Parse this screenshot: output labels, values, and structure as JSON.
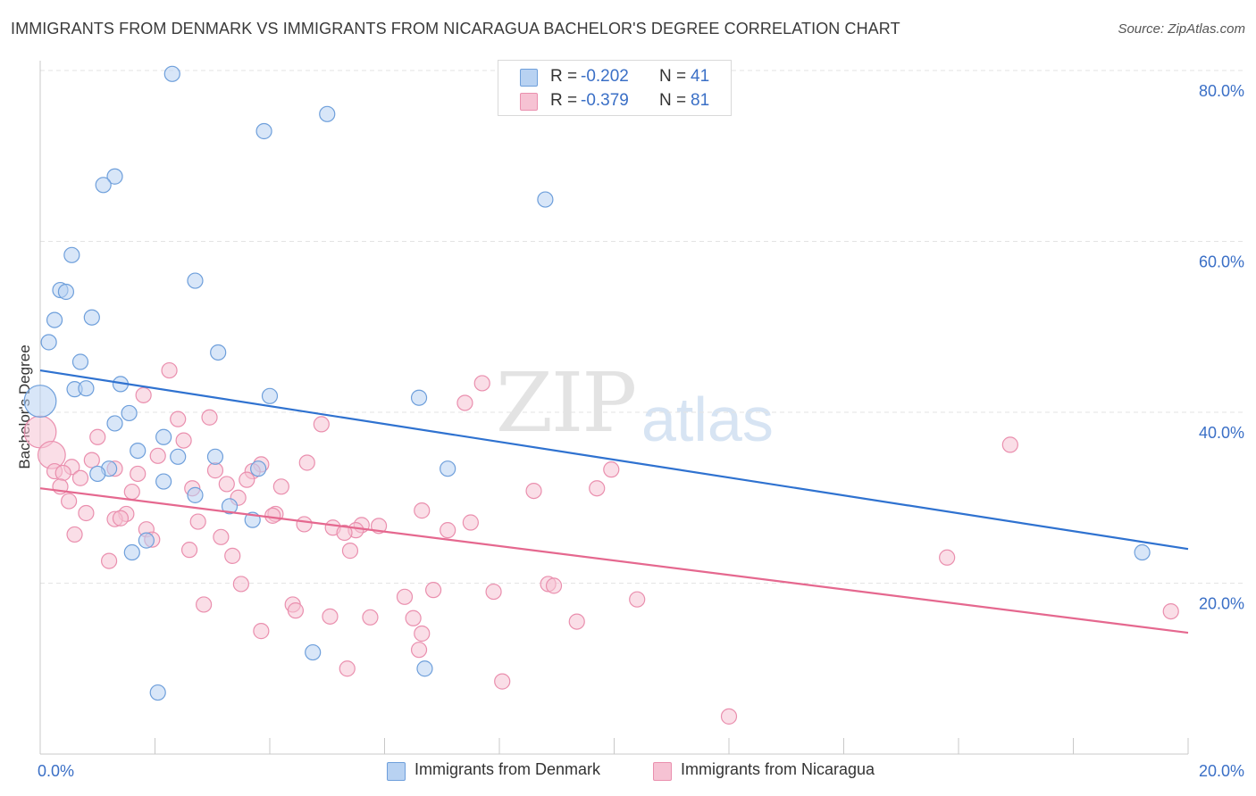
{
  "header": {
    "title": "IMMIGRANTS FROM DENMARK VS IMMIGRANTS FROM NICARAGUA BACHELOR'S DEGREE CORRELATION CHART",
    "source": "Source: ZipAtlas.com"
  },
  "watermark": {
    "left": "ZIP",
    "right": "atlas"
  },
  "legend": {
    "rows": [
      {
        "r_label": "R =",
        "r_value": "-0.202",
        "n_label": "N =",
        "n_value": "41"
      },
      {
        "r_label": "R =",
        "r_value": "-0.379",
        "n_label": "N =",
        "n_value": "81"
      }
    ]
  },
  "bottom_legend": {
    "items": [
      {
        "label": "Immigrants from Denmark"
      },
      {
        "label": "Immigrants from Nicaragua"
      }
    ]
  },
  "colors": {
    "denmark_fill": "#b8d2f2",
    "denmark_stroke": "#6e9fdb",
    "denmark_line": "#2f72d0",
    "nicaragua_fill": "#f6c2d3",
    "nicaragua_stroke": "#ea8fae",
    "nicaragua_line": "#e5688f",
    "axis_text": "#3a6fc6",
    "grid": "#e3e3e3"
  },
  "chart_data": {
    "type": "scatter",
    "title": "IMMIGRANTS FROM DENMARK VS IMMIGRANTS FROM NICARAGUA BACHELOR'S DEGREE CORRELATION CHART",
    "xlabel": "",
    "ylabel": "Bachelor's Degree",
    "xlim": [
      0,
      20
    ],
    "ylim": [
      0,
      82
    ],
    "x_tick_labels": [
      {
        "value": 0,
        "label": "0.0%"
      },
      {
        "value": 20,
        "label": "20.0%"
      }
    ],
    "y_tick_labels": [
      {
        "value": 20,
        "label": "20.0%"
      },
      {
        "value": 40,
        "label": "40.0%"
      },
      {
        "value": 60,
        "label": "60.0%"
      },
      {
        "value": 80,
        "label": "80.0%"
      }
    ],
    "grid": true,
    "legend_position": "top-center",
    "series": [
      {
        "name": "Immigrants from Denmark",
        "color": "#6e9fdb",
        "trend": {
          "x": [
            0,
            20
          ],
          "y": [
            44.9,
            24.0
          ]
        },
        "points": [
          [
            2.3,
            79.6,
            1
          ],
          [
            5.0,
            74.9,
            1
          ],
          [
            3.9,
            72.9,
            1
          ],
          [
            1.3,
            67.6,
            1
          ],
          [
            1.1,
            66.6,
            1
          ],
          [
            8.8,
            64.9,
            1
          ],
          [
            0.55,
            58.4,
            1
          ],
          [
            2.7,
            55.4,
            1
          ],
          [
            0.35,
            54.3,
            1
          ],
          [
            0.45,
            54.1,
            1
          ],
          [
            0.25,
            50.8,
            1
          ],
          [
            0.9,
            51.1,
            1
          ],
          [
            0.15,
            48.2,
            1
          ],
          [
            3.1,
            47.0,
            1
          ],
          [
            0.7,
            45.9,
            1
          ],
          [
            0.6,
            42.7,
            1
          ],
          [
            0.8,
            42.8,
            1
          ],
          [
            1.4,
            43.3,
            1
          ],
          [
            0.0,
            41.3,
            1.4
          ],
          [
            4.0,
            41.9,
            1
          ],
          [
            6.6,
            41.7,
            1
          ],
          [
            1.55,
            39.9,
            1
          ],
          [
            1.3,
            38.7,
            1
          ],
          [
            2.15,
            37.1,
            1
          ],
          [
            1.7,
            35.5,
            1
          ],
          [
            2.4,
            34.8,
            1
          ],
          [
            3.05,
            34.8,
            1
          ],
          [
            1.2,
            33.4,
            1
          ],
          [
            1.0,
            32.8,
            1
          ],
          [
            3.8,
            33.4,
            1
          ],
          [
            7.1,
            33.4,
            1
          ],
          [
            2.15,
            31.9,
            1
          ],
          [
            2.7,
            30.3,
            1
          ],
          [
            3.3,
            29.0,
            1
          ],
          [
            3.7,
            27.4,
            1
          ],
          [
            1.85,
            25.0,
            1
          ],
          [
            1.6,
            23.6,
            1
          ],
          [
            19.2,
            23.6,
            1
          ],
          [
            4.75,
            11.9,
            1
          ],
          [
            6.7,
            10.0,
            1
          ],
          [
            2.05,
            7.2,
            1
          ]
        ]
      },
      {
        "name": "Immigrants from Nicaragua",
        "color": "#ea8fae",
        "trend": {
          "x": [
            0,
            20
          ],
          "y": [
            31.1,
            14.2
          ]
        },
        "points": [
          [
            0.0,
            37.7,
            1.4
          ],
          [
            2.25,
            44.9,
            1
          ],
          [
            7.7,
            43.4,
            1
          ],
          [
            1.8,
            42.0,
            1
          ],
          [
            7.4,
            41.1,
            1
          ],
          [
            2.95,
            39.4,
            1
          ],
          [
            2.4,
            39.2,
            1
          ],
          [
            4.9,
            38.6,
            1
          ],
          [
            1.0,
            37.1,
            1
          ],
          [
            2.5,
            36.7,
            1
          ],
          [
            16.9,
            36.2,
            1
          ],
          [
            0.2,
            35.0,
            1.2
          ],
          [
            2.05,
            34.9,
            1
          ],
          [
            0.9,
            34.4,
            1
          ],
          [
            4.65,
            34.1,
            1
          ],
          [
            0.55,
            33.6,
            1
          ],
          [
            3.85,
            33.9,
            1
          ],
          [
            0.25,
            33.1,
            1
          ],
          [
            0.4,
            32.9,
            1
          ],
          [
            1.3,
            33.4,
            1
          ],
          [
            3.05,
            33.2,
            1
          ],
          [
            1.7,
            32.8,
            1
          ],
          [
            3.7,
            33.1,
            1
          ],
          [
            0.7,
            32.3,
            1
          ],
          [
            3.6,
            32.1,
            1
          ],
          [
            9.95,
            33.3,
            1
          ],
          [
            3.25,
            31.6,
            1
          ],
          [
            4.2,
            31.3,
            1
          ],
          [
            0.35,
            31.3,
            1
          ],
          [
            2.65,
            31.1,
            1
          ],
          [
            9.7,
            31.1,
            1
          ],
          [
            1.6,
            30.7,
            1
          ],
          [
            8.6,
            30.8,
            1
          ],
          [
            3.45,
            30.0,
            1
          ],
          [
            6.65,
            28.5,
            1
          ],
          [
            0.8,
            28.2,
            1
          ],
          [
            1.5,
            28.1,
            1
          ],
          [
            4.1,
            28.1,
            1
          ],
          [
            1.3,
            27.5,
            1
          ],
          [
            1.4,
            27.6,
            1
          ],
          [
            2.75,
            27.2,
            1
          ],
          [
            4.6,
            26.9,
            1
          ],
          [
            7.5,
            27.1,
            1
          ],
          [
            5.6,
            26.8,
            1
          ],
          [
            5.9,
            26.7,
            1
          ],
          [
            5.1,
            26.5,
            1
          ],
          [
            5.5,
            26.2,
            1
          ],
          [
            7.1,
            26.2,
            1
          ],
          [
            5.3,
            25.9,
            1
          ],
          [
            1.85,
            26.3,
            1
          ],
          [
            0.6,
            25.7,
            1
          ],
          [
            3.15,
            25.4,
            1
          ],
          [
            1.95,
            25.1,
            1
          ],
          [
            2.6,
            23.9,
            1
          ],
          [
            5.4,
            23.8,
            1
          ],
          [
            3.35,
            23.2,
            1
          ],
          [
            1.2,
            22.6,
            1
          ],
          [
            15.8,
            23.0,
            1
          ],
          [
            3.5,
            19.9,
            1
          ],
          [
            8.85,
            19.9,
            1
          ],
          [
            8.95,
            19.7,
            1
          ],
          [
            6.85,
            19.2,
            1
          ],
          [
            7.9,
            19.0,
            1
          ],
          [
            6.35,
            18.4,
            1
          ],
          [
            10.4,
            18.1,
            1
          ],
          [
            2.85,
            17.5,
            1
          ],
          [
            4.4,
            17.5,
            1
          ],
          [
            4.45,
            16.8,
            1
          ],
          [
            5.05,
            16.1,
            1
          ],
          [
            5.75,
            16.0,
            1
          ],
          [
            6.5,
            15.9,
            1
          ],
          [
            9.35,
            15.5,
            1
          ],
          [
            19.7,
            16.7,
            1
          ],
          [
            3.85,
            14.4,
            1
          ],
          [
            6.65,
            14.1,
            1
          ],
          [
            6.6,
            12.2,
            1
          ],
          [
            5.35,
            10.0,
            1
          ],
          [
            8.05,
            8.5,
            1
          ],
          [
            12.0,
            4.4,
            1
          ],
          [
            0.5,
            29.6,
            1
          ],
          [
            4.05,
            27.9,
            1
          ]
        ]
      }
    ]
  }
}
